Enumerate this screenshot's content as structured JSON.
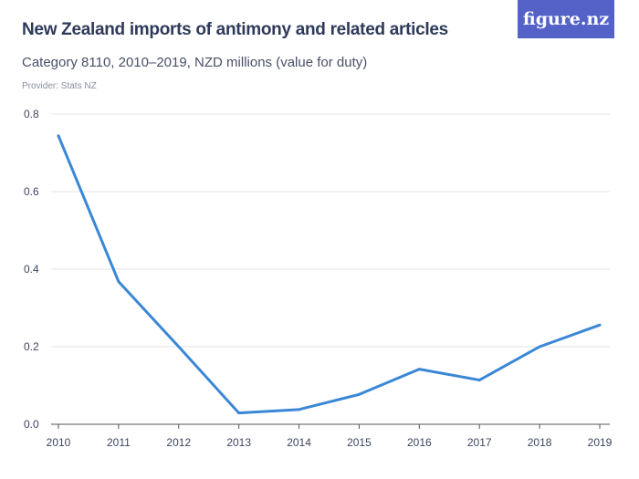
{
  "header": {
    "title": "New Zealand imports of antimony and related articles",
    "subtitle": "Category 8110, 2010–2019, NZD millions (value for duty)",
    "provider": "Provider: Stats NZ",
    "logo": "figure.nz"
  },
  "colors": {
    "line": "#3a87d6",
    "grid": "#e3e3e3",
    "logo_bg": "#5462c8"
  },
  "chart_data": {
    "type": "line",
    "title": "New Zealand imports of antimony and related articles",
    "xlabel": "",
    "ylabel": "NZD millions",
    "categories": [
      "2010",
      "2011",
      "2012",
      "2013",
      "2014",
      "2015",
      "2016",
      "2017",
      "2018",
      "2019"
    ],
    "series": [
      {
        "name": "Imports",
        "values": [
          0.744,
          0.368,
          0.2,
          0.029,
          0.038,
          0.077,
          0.142,
          0.114,
          0.2,
          0.256
        ]
      }
    ],
    "ylim": [
      0,
      0.8
    ],
    "yticks": [
      "0.0",
      "0.2",
      "0.4",
      "0.6",
      "0.8"
    ],
    "grid": true,
    "legend": "none"
  }
}
